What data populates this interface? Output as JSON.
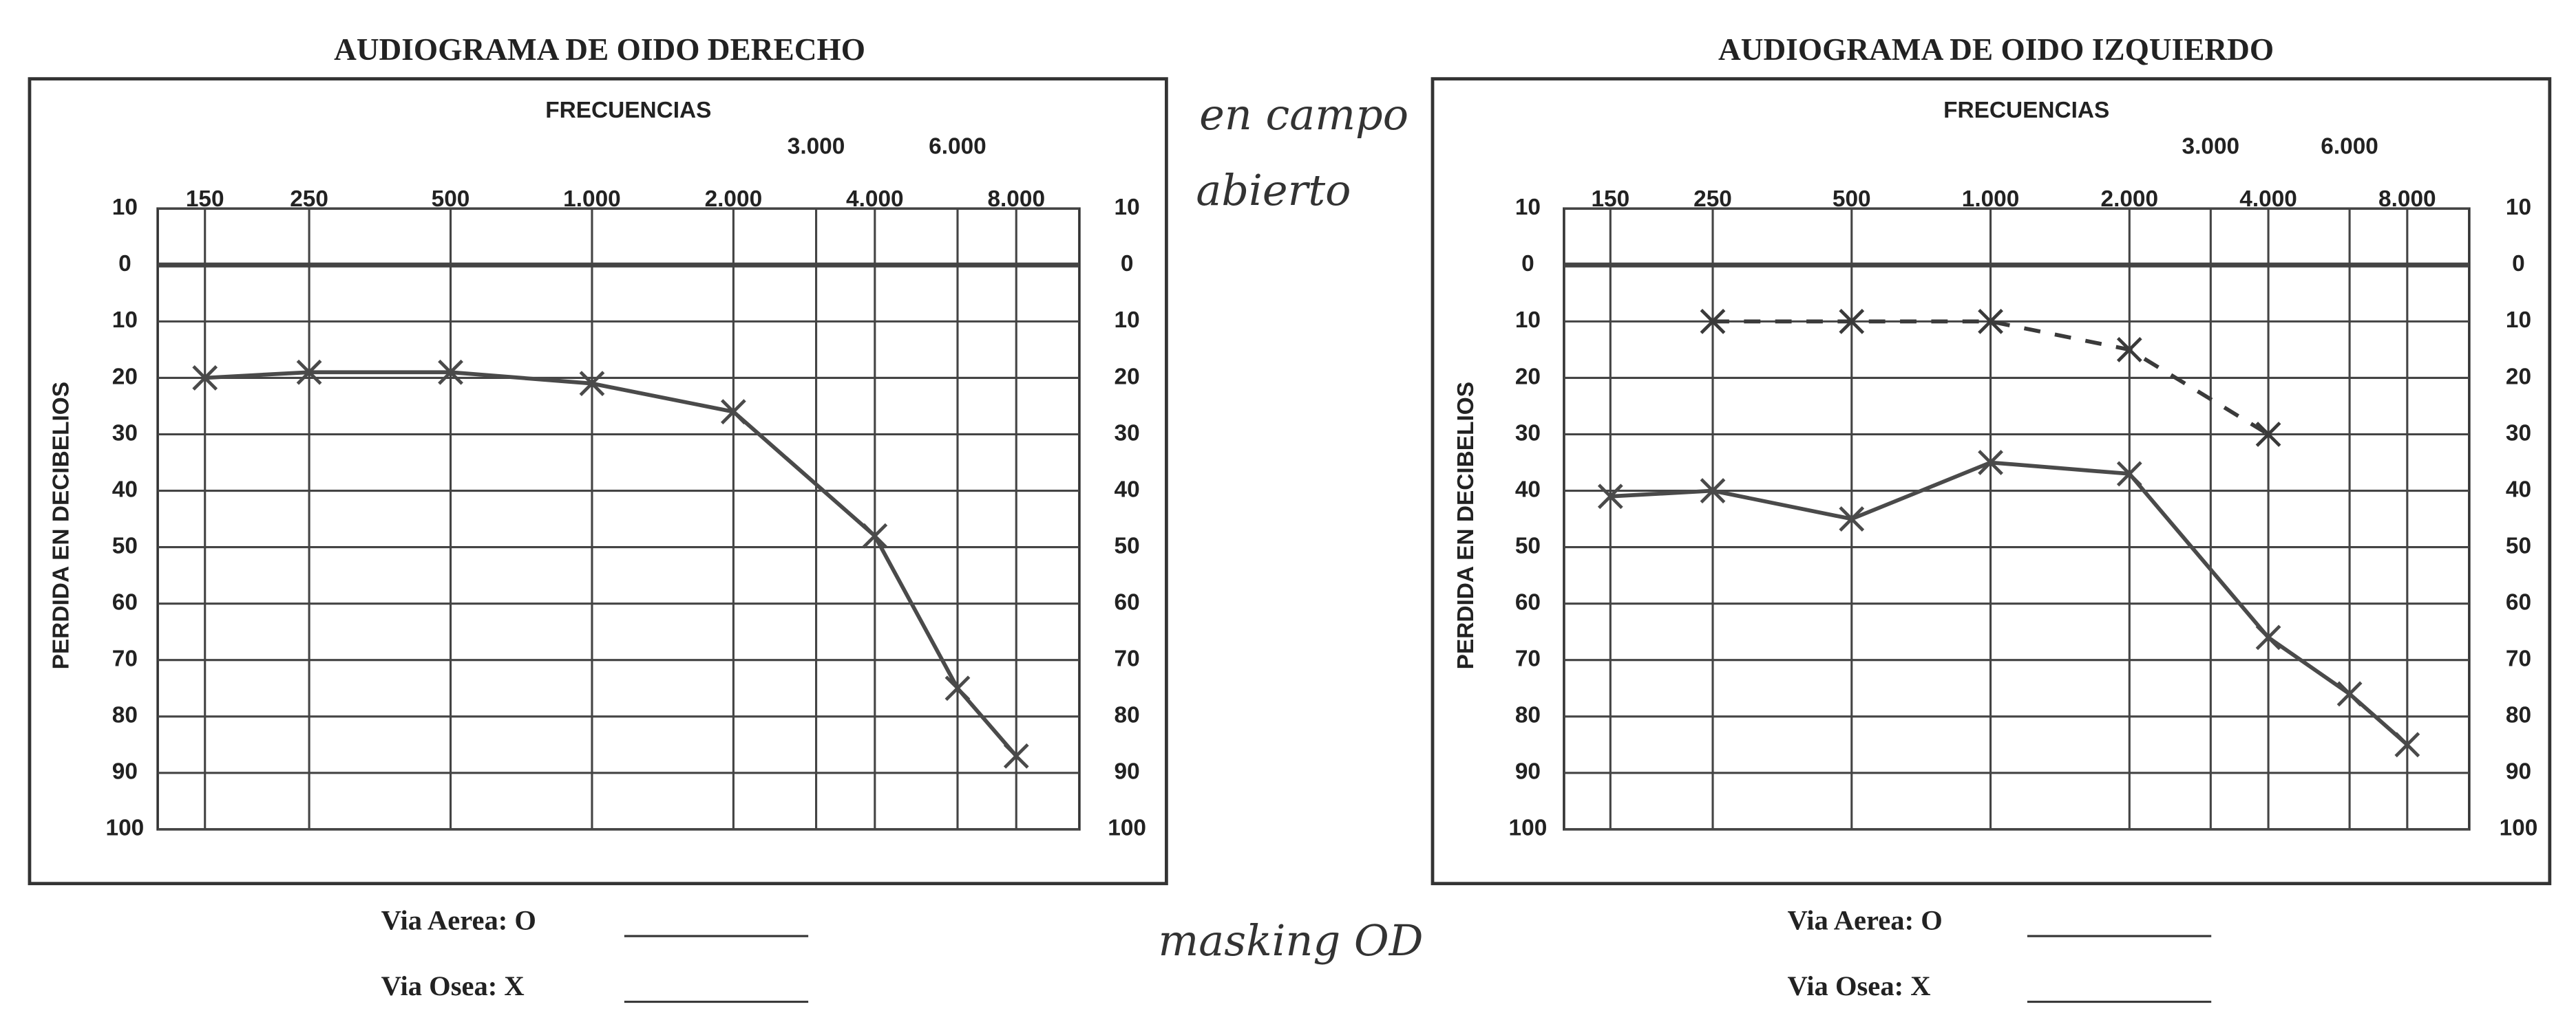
{
  "chart_data": [
    {
      "type": "line",
      "title": "AUDIOGRAMA DE OIDO DERECHO",
      "xlabel": "FRECUENCIAS",
      "ylabel": "PERDIDA EN DECIBELIOS",
      "xscale": "log",
      "xlim": [
        119,
        10900
      ],
      "ylim": [
        -10,
        100
      ],
      "yinvert": true,
      "grid": true,
      "xticks": [
        150,
        250,
        500,
        {
          "value": 1000,
          "label": "1.000"
        },
        {
          "value": 2000,
          "label": "2.000"
        },
        {
          "value": 4000,
          "label": "4.000"
        },
        {
          "value": 8000,
          "label": "8.000"
        }
      ],
      "xticks_half": [
        {
          "value": 3000,
          "label": "3.000"
        },
        {
          "value": 6000,
          "label": "6.000"
        }
      ],
      "yticks": [
        {
          "value": -10,
          "label": "10"
        },
        0,
        10,
        20,
        30,
        40,
        50,
        60,
        70,
        80,
        90,
        100
      ],
      "x": [
        150,
        250,
        500,
        1000,
        2000,
        4000,
        6000,
        8000
      ],
      "series": [
        {
          "color": "#4a4a4a",
          "marker": "x",
          "dash": false,
          "values": [
            20,
            19,
            19,
            21,
            26,
            48,
            75,
            87
          ]
        }
      ],
      "legend": [
        "Via Aerea: O",
        "Via Osea: X"
      ]
    },
    {
      "type": "line",
      "title": "AUDIOGRAMA DE OIDO IZQUIERDO",
      "xlabel": "FRECUENCIAS",
      "ylabel": "PERDIDA EN DECIBELIOS",
      "xscale": "log",
      "xlim": [
        119,
        10900
      ],
      "ylim": [
        -10,
        100
      ],
      "yinvert": true,
      "grid": true,
      "xticks": [
        150,
        250,
        500,
        {
          "value": 1000,
          "label": "1.000"
        },
        {
          "value": 2000,
          "label": "2.000"
        },
        {
          "value": 4000,
          "label": "4.000"
        },
        {
          "value": 8000,
          "label": "8.000"
        }
      ],
      "xticks_half": [
        {
          "value": 3000,
          "label": "3.000"
        },
        {
          "value": 6000,
          "label": "6.000"
        }
      ],
      "yticks": [
        {
          "value": -10,
          "label": "10"
        },
        0,
        10,
        20,
        30,
        40,
        50,
        60,
        70,
        80,
        90,
        100
      ],
      "x": [
        150,
        250,
        500,
        1000,
        2000,
        4000,
        6000,
        8000
      ],
      "series": [
        {
          "color": "#3a3a3a",
          "marker": "x",
          "dash": true,
          "values": [
            null,
            10,
            10,
            10,
            15,
            30,
            null,
            null
          ]
        },
        {
          "color": "#4a4a4a",
          "marker": "x",
          "dash": false,
          "values": [
            41,
            40,
            45,
            35,
            37,
            66,
            76,
            85
          ]
        }
      ],
      "legend": [
        "Via Aerea: O",
        "Via Osea: X"
      ]
    }
  ],
  "annotations": [
    "en campo",
    "abierto",
    "masking OD"
  ]
}
